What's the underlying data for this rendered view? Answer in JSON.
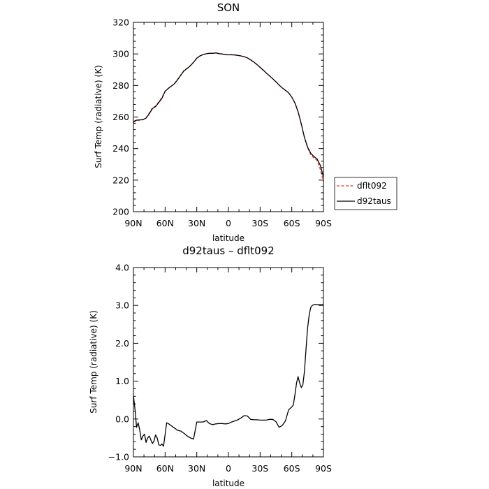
{
  "chart_data": [
    {
      "type": "line",
      "title": "SON",
      "xlabel": "latitude",
      "ylabel": "Surf Temp (radiative) (K)",
      "xlim": [
        90,
        -90
      ],
      "ylim": [
        200,
        320
      ],
      "x_ticks": [
        90,
        60,
        30,
        0,
        -30,
        -60,
        -90
      ],
      "x_tick_labels": [
        "90N",
        "60N",
        "30N",
        "0",
        "30S",
        "60S",
        "90S"
      ],
      "y_ticks": [
        200,
        220,
        240,
        260,
        280,
        300,
        320
      ],
      "y_tick_labels": [
        "200",
        "220",
        "240",
        "260",
        "280",
        "300",
        "320"
      ],
      "legend_position": "outside-right",
      "series": [
        {
          "name": "dflt092",
          "color": "#e8342c",
          "dash": "dashed",
          "x": [
            90,
            87,
            84,
            81,
            78,
            75,
            72,
            69,
            66,
            63,
            60,
            57,
            54,
            51,
            48,
            45,
            42,
            39,
            36,
            33,
            30,
            27,
            24,
            21,
            18,
            15,
            12,
            9,
            6,
            3,
            0,
            -3,
            -6,
            -9,
            -12,
            -15,
            -18,
            -21,
            -24,
            -27,
            -30,
            -33,
            -36,
            -39,
            -42,
            -45,
            -48,
            -51,
            -54,
            -57,
            -60,
            -63,
            -66,
            -69,
            -72,
            -75,
            -78,
            -81,
            -84,
            -87,
            -90
          ],
          "y": [
            256.5,
            257.8,
            258.0,
            258.2,
            259.5,
            262.6,
            265.8,
            267.0,
            269.6,
            272.4,
            276.4,
            278.2,
            279.6,
            281.4,
            284.0,
            286.8,
            289.6,
            291.0,
            292.6,
            294.8,
            297.4,
            298.8,
            299.6,
            300.1,
            300.4,
            300.4,
            300.6,
            300.3,
            300.0,
            299.6,
            299.5,
            299.6,
            299.4,
            299.1,
            298.8,
            298.2,
            297.4,
            296.1,
            294.8,
            293.2,
            291.4,
            289.6,
            287.8,
            286.1,
            284.2,
            282.3,
            280.3,
            278.4,
            276.9,
            275.3,
            272.6,
            268.9,
            263.5,
            255.5,
            246.9,
            240.5,
            236.1,
            233.9,
            232.5,
            226.8,
            219.0
          ]
        },
        {
          "name": "d92taus",
          "color": "#000000",
          "dash": "solid",
          "x": [
            90,
            87,
            84,
            81,
            78,
            75,
            72,
            69,
            66,
            63,
            60,
            57,
            54,
            51,
            48,
            45,
            42,
            39,
            36,
            33,
            30,
            27,
            24,
            21,
            18,
            15,
            12,
            9,
            6,
            3,
            0,
            -3,
            -6,
            -9,
            -12,
            -15,
            -18,
            -21,
            -24,
            -27,
            -30,
            -33,
            -36,
            -39,
            -42,
            -45,
            -48,
            -51,
            -54,
            -57,
            -60,
            -63,
            -66,
            -69,
            -72,
            -75,
            -78,
            -81,
            -84,
            -87,
            -90
          ],
          "y": [
            257.1,
            258.0,
            258.2,
            258.3,
            259.3,
            262.1,
            265.3,
            266.6,
            269.2,
            271.8,
            276.3,
            278.1,
            279.6,
            281.2,
            283.8,
            286.6,
            289.3,
            290.8,
            292.5,
            294.7,
            297.3,
            298.7,
            299.6,
            300.1,
            300.4,
            300.4,
            300.6,
            300.2,
            299.9,
            299.5,
            299.4,
            299.4,
            299.3,
            299.0,
            298.7,
            298.2,
            297.5,
            296.2,
            294.9,
            293.3,
            291.5,
            289.7,
            287.8,
            286.1,
            284.2,
            282.3,
            280.3,
            278.4,
            276.9,
            275.3,
            272.6,
            268.9,
            263.3,
            255.6,
            247.1,
            240.9,
            237.0,
            235.0,
            233.4,
            229.4,
            222.0
          ]
        }
      ]
    },
    {
      "type": "line",
      "title": "d92taus – dflt092",
      "xlabel": "latitude",
      "ylabel": "Surf Temp (radiative) (K)",
      "xlim": [
        90,
        -90
      ],
      "ylim": [
        -1.0,
        4.0
      ],
      "x_ticks": [
        90,
        60,
        30,
        0,
        -30,
        -60,
        -90
      ],
      "x_tick_labels": [
        "90N",
        "60N",
        "30N",
        "0",
        "30S",
        "60S",
        "90S"
      ],
      "y_ticks": [
        -1,
        0,
        1,
        2,
        3,
        4
      ],
      "y_tick_labels": [
        "−1.0",
        "0.0",
        "1.0",
        "2.0",
        "3.0",
        "4.0"
      ],
      "series": [
        {
          "color": "#000000",
          "dash": "solid",
          "x": [
            90,
            88.5,
            87,
            85.5,
            84,
            82.5,
            81,
            79.5,
            78,
            76.5,
            75,
            73.5,
            72,
            70.5,
            69,
            67.5,
            66,
            64.5,
            63,
            61.5,
            60,
            58.5,
            57,
            54,
            51,
            48,
            45,
            42,
            39,
            36,
            33,
            30,
            27,
            24,
            21,
            18,
            15,
            12,
            9,
            6,
            3,
            0,
            -3,
            -6,
            -9,
            -12,
            -15,
            -18,
            -21,
            -24,
            -27,
            -30,
            -33,
            -36,
            -39,
            -42,
            -45,
            -48,
            -51,
            -54,
            -57,
            -60,
            -61.5,
            -63,
            -64.5,
            -66,
            -67.5,
            -69,
            -70.5,
            -72,
            -73.5,
            -75,
            -76.5,
            -78,
            -79.5,
            -81,
            -82.5,
            -84,
            -85.5,
            -87,
            -88.5,
            -90
          ],
          "y": [
            0.62,
            0.25,
            -0.22,
            -0.1,
            -0.3,
            -0.55,
            -0.45,
            -0.4,
            -0.62,
            -0.5,
            -0.45,
            -0.55,
            -0.65,
            -0.58,
            -0.42,
            -0.5,
            -0.68,
            -0.7,
            -0.66,
            -0.72,
            -0.42,
            -0.1,
            -0.12,
            -0.18,
            -0.24,
            -0.3,
            -0.32,
            -0.38,
            -0.45,
            -0.5,
            -0.53,
            -0.08,
            -0.08,
            -0.08,
            -0.04,
            -0.12,
            -0.15,
            -0.13,
            -0.12,
            -0.12,
            -0.13,
            -0.12,
            -0.08,
            -0.05,
            -0.02,
            0.03,
            0.09,
            0.08,
            -0.01,
            -0.02,
            -0.02,
            -0.03,
            -0.03,
            -0.03,
            -0.01,
            -0.01,
            -0.07,
            -0.22,
            -0.17,
            -0.05,
            0.24,
            0.32,
            0.37,
            0.64,
            0.95,
            1.12,
            0.95,
            0.83,
            0.9,
            1.25,
            1.85,
            2.4,
            2.75,
            2.95,
            3.0,
            3.02,
            3.03,
            3.02,
            3.02,
            3.02,
            3.02,
            3.02
          ]
        }
      ]
    }
  ]
}
